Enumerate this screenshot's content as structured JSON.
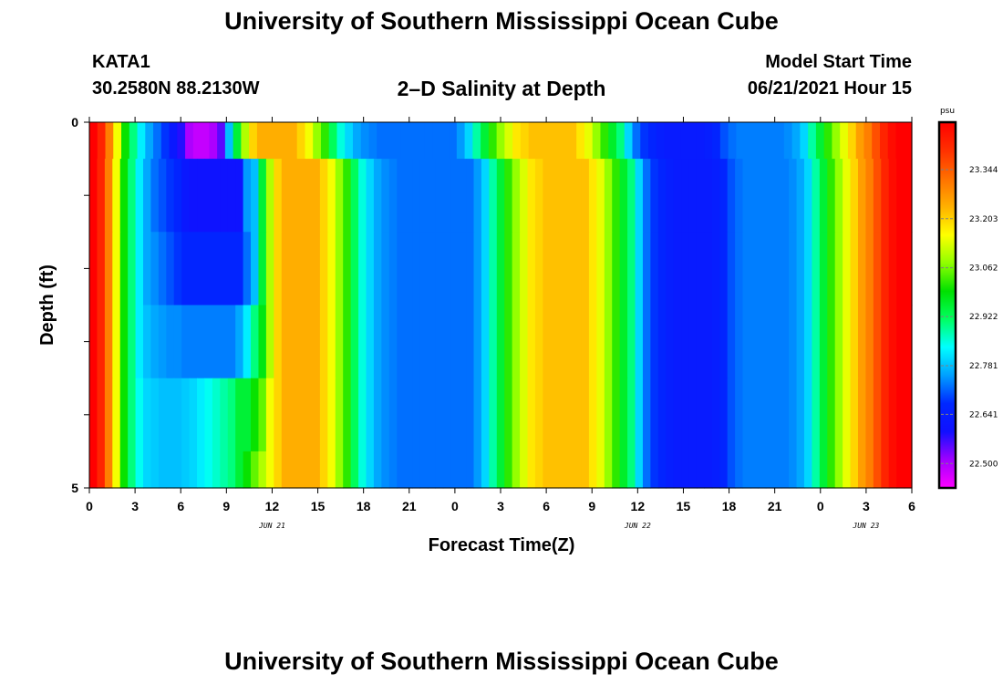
{
  "page": {
    "title_top": "University of Southern Mississippi Ocean Cube",
    "title_bottom": "University of Southern Mississippi Ocean Cube",
    "station": "KATA1",
    "coords": "30.2580N  88.2130W",
    "subtitle": "2–D Salinity at Depth",
    "model_label": "Model Start Time",
    "model_time": "06/21/2021 Hour 15"
  },
  "chart_data": {
    "type": "heatmap",
    "title": "2–D Salinity at Depth",
    "xlabel": "Forecast Time(Z)",
    "ylabel": "Depth (ft)",
    "x_tick_labels": [
      "0",
      "3",
      "6",
      "9",
      "12",
      "15",
      "18",
      "21",
      "0",
      "3",
      "6",
      "9",
      "12",
      "15",
      "18",
      "21",
      "0",
      "3",
      "6"
    ],
    "date_labels": [
      {
        "text": "JUN 21",
        "hour": 12
      },
      {
        "text": "JUN 22",
        "hour": 36
      },
      {
        "text": "JUN 23",
        "hour": 51
      }
    ],
    "y_tick_labels": [
      {
        "depth": 0,
        "text": "0"
      },
      {
        "depth": 5,
        "text": "5"
      }
    ],
    "xlim": [
      0,
      54
    ],
    "ylim": [
      0,
      5
    ],
    "colorbar": {
      "unit": "psu",
      "min": 22.43,
      "max": 23.48,
      "tick_values": [
        23.344,
        23.203,
        23.062,
        22.922,
        22.781,
        22.641,
        22.5
      ],
      "tick_labels": [
        "23.344",
        "23.203",
        "23.062",
        "22.922",
        "22.781",
        "22.641",
        "22.500"
      ],
      "colors": [
        "#ff00ff",
        "#a000ff",
        "#1010ff",
        "#0028ff",
        "#00a0ff",
        "#00ffff",
        "#00ff60",
        "#00e000",
        "#90ff00",
        "#ffff00",
        "#ffb000",
        "#ff7000",
        "#ff3000",
        "#ff0000"
      ]
    },
    "rows": [
      {
        "depth_range": [
          0.0,
          0.5
        ],
        "values": [
          23.48,
          23.42,
          23.3,
          23.15,
          23.0,
          22.9,
          22.82,
          22.76,
          22.72,
          22.68,
          22.62,
          22.58,
          22.5,
          22.48,
          22.48,
          22.5,
          22.55,
          22.78,
          22.95,
          23.1,
          23.2,
          23.24,
          23.24,
          23.24,
          23.24,
          23.24,
          23.2,
          23.15,
          23.08,
          23.02,
          22.92,
          22.85,
          22.8,
          22.76,
          22.74,
          22.73,
          22.72,
          22.72,
          22.72,
          22.72,
          22.72,
          22.72,
          22.72,
          22.72,
          22.72,
          22.72,
          22.75,
          22.8,
          22.88,
          22.95,
          23.02,
          23.08,
          23.13,
          23.18,
          23.2,
          23.22,
          23.22,
          23.22,
          23.22,
          23.22,
          23.22,
          23.18,
          23.14,
          23.08,
          23.02,
          22.96,
          22.9,
          22.8,
          22.72,
          22.68,
          22.66,
          22.64,
          22.63,
          22.63,
          22.63,
          22.63,
          22.63,
          22.64,
          22.66,
          22.7,
          22.72,
          22.73,
          22.73,
          22.73,
          22.73,
          22.73,
          22.73,
          22.74,
          22.76,
          22.8,
          22.88,
          22.95,
          23.02,
          23.08,
          23.14,
          23.2,
          23.26,
          23.3,
          23.36,
          23.42,
          23.46,
          23.48,
          23.48
        ]
      },
      {
        "depth_range": [
          0.5,
          1.5
        ],
        "values": [
          23.48,
          23.42,
          23.3,
          23.15,
          23.0,
          22.9,
          22.82,
          22.76,
          22.72,
          22.7,
          22.68,
          22.66,
          22.62,
          22.6,
          22.6,
          22.6,
          22.6,
          22.6,
          22.6,
          22.6,
          22.75,
          22.78,
          22.95,
          23.1,
          23.2,
          23.24,
          23.24,
          23.24,
          23.24,
          23.24,
          23.2,
          23.15,
          23.08,
          23.02,
          22.92,
          22.85,
          22.8,
          22.76,
          22.74,
          22.73,
          22.72,
          22.72,
          22.72,
          22.72,
          22.72,
          22.72,
          22.72,
          22.72,
          22.72,
          22.72,
          22.75,
          22.8,
          22.88,
          22.95,
          23.02,
          23.08,
          23.13,
          23.18,
          23.2,
          23.22,
          23.22,
          23.22,
          23.22,
          23.22,
          23.22,
          23.18,
          23.14,
          23.08,
          23.02,
          22.96,
          22.9,
          22.8,
          22.72,
          22.68,
          22.66,
          22.64,
          22.63,
          22.63,
          22.63,
          22.63,
          22.63,
          22.64,
          22.66,
          22.7,
          22.72,
          22.73,
          22.73,
          22.73,
          22.73,
          22.73,
          22.73,
          22.74,
          22.76,
          22.8,
          22.88,
          22.95,
          23.02,
          23.08,
          23.14,
          23.2,
          23.26,
          23.3,
          23.36,
          23.42,
          23.46,
          23.48,
          23.48
        ]
      },
      {
        "depth_range": [
          1.5,
          2.5
        ],
        "values": [
          23.48,
          23.42,
          23.3,
          23.15,
          23.0,
          22.9,
          22.82,
          22.76,
          22.74,
          22.72,
          22.7,
          22.68,
          22.66,
          22.66,
          22.66,
          22.66,
          22.66,
          22.66,
          22.66,
          22.66,
          22.72,
          22.78,
          22.95,
          23.1,
          23.2,
          23.24,
          23.24,
          23.24,
          23.24,
          23.24,
          23.2,
          23.15,
          23.08,
          23.02,
          22.92,
          22.85,
          22.8,
          22.76,
          22.74,
          22.73,
          22.72,
          22.72,
          22.72,
          22.72,
          22.72,
          22.72,
          22.72,
          22.72,
          22.72,
          22.72,
          22.75,
          22.8,
          22.88,
          22.95,
          23.02,
          23.08,
          23.13,
          23.18,
          23.2,
          23.22,
          23.22,
          23.22,
          23.22,
          23.22,
          23.22,
          23.18,
          23.14,
          23.08,
          23.02,
          22.96,
          22.9,
          22.8,
          22.72,
          22.68,
          22.66,
          22.64,
          22.63,
          22.63,
          22.63,
          22.63,
          22.63,
          22.64,
          22.66,
          22.7,
          22.72,
          22.73,
          22.73,
          22.73,
          22.73,
          22.73,
          22.73,
          22.74,
          22.76,
          22.8,
          22.88,
          22.95,
          23.02,
          23.08,
          23.14,
          23.2,
          23.26,
          23.3,
          23.36,
          23.42,
          23.46,
          23.48,
          23.48
        ]
      },
      {
        "depth_range": [
          2.5,
          3.5
        ],
        "values": [
          23.48,
          23.42,
          23.3,
          23.15,
          23.0,
          22.9,
          22.82,
          22.78,
          22.76,
          22.75,
          22.74,
          22.74,
          22.73,
          22.73,
          22.73,
          22.73,
          22.73,
          22.73,
          22.73,
          22.76,
          22.82,
          22.9,
          22.98,
          23.1,
          23.2,
          23.24,
          23.24,
          23.24,
          23.24,
          23.24,
          23.2,
          23.15,
          23.08,
          23.02,
          22.92,
          22.85,
          22.8,
          22.76,
          22.74,
          22.73,
          22.72,
          22.72,
          22.72,
          22.72,
          22.72,
          22.72,
          22.72,
          22.72,
          22.72,
          22.72,
          22.75,
          22.8,
          22.88,
          22.95,
          23.02,
          23.08,
          23.13,
          23.18,
          23.2,
          23.22,
          23.22,
          23.22,
          23.22,
          23.22,
          23.22,
          23.18,
          23.14,
          23.08,
          23.02,
          22.96,
          22.9,
          22.8,
          22.72,
          22.68,
          22.66,
          22.64,
          22.63,
          22.63,
          22.63,
          22.63,
          22.63,
          22.64,
          22.66,
          22.7,
          22.72,
          22.73,
          22.73,
          22.73,
          22.73,
          22.73,
          22.73,
          22.74,
          22.76,
          22.8,
          22.88,
          22.95,
          23.02,
          23.08,
          23.14,
          23.2,
          23.26,
          23.3,
          23.36,
          23.42,
          23.46,
          23.48,
          23.48
        ]
      },
      {
        "depth_range": [
          3.5,
          4.5
        ],
        "values": [
          23.48,
          23.42,
          23.3,
          23.15,
          23.0,
          22.9,
          22.84,
          22.8,
          22.79,
          22.78,
          22.78,
          22.78,
          22.79,
          22.8,
          22.82,
          22.84,
          22.86,
          22.88,
          22.9,
          22.95,
          22.95,
          23.0,
          23.05,
          23.15,
          23.2,
          23.24,
          23.24,
          23.24,
          23.24,
          23.24,
          23.2,
          23.15,
          23.08,
          23.02,
          22.92,
          22.85,
          22.8,
          22.76,
          22.74,
          22.73,
          22.72,
          22.72,
          22.72,
          22.72,
          22.72,
          22.72,
          22.72,
          22.72,
          22.72,
          22.72,
          22.75,
          22.8,
          22.88,
          22.95,
          23.02,
          23.08,
          23.13,
          23.18,
          23.2,
          23.22,
          23.22,
          23.22,
          23.22,
          23.22,
          23.22,
          23.18,
          23.14,
          23.08,
          23.02,
          22.96,
          22.9,
          22.8,
          22.72,
          22.68,
          22.66,
          22.64,
          22.63,
          22.63,
          22.63,
          22.63,
          22.63,
          22.64,
          22.66,
          22.7,
          22.72,
          22.73,
          22.73,
          22.73,
          22.73,
          22.73,
          22.73,
          22.74,
          22.76,
          22.8,
          22.88,
          22.95,
          23.02,
          23.08,
          23.14,
          23.2,
          23.26,
          23.3,
          23.36,
          23.42,
          23.46,
          23.48,
          23.48
        ]
      },
      {
        "depth_range": [
          4.5,
          5.0
        ],
        "values": [
          23.48,
          23.42,
          23.3,
          23.15,
          23.0,
          22.9,
          22.84,
          22.8,
          22.79,
          22.78,
          22.78,
          22.78,
          22.79,
          22.8,
          22.82,
          22.84,
          22.86,
          22.88,
          22.9,
          22.95,
          23.0,
          23.05,
          23.1,
          23.15,
          23.2,
          23.24,
          23.24,
          23.24,
          23.24,
          23.24,
          23.2,
          23.15,
          23.08,
          23.02,
          22.92,
          22.85,
          22.8,
          22.76,
          22.74,
          22.73,
          22.72,
          22.72,
          22.72,
          22.72,
          22.72,
          22.72,
          22.72,
          22.72,
          22.72,
          22.72,
          22.75,
          22.8,
          22.88,
          22.95,
          23.02,
          23.08,
          23.13,
          23.18,
          23.2,
          23.22,
          23.22,
          23.22,
          23.22,
          23.22,
          23.22,
          23.18,
          23.14,
          23.08,
          23.02,
          22.96,
          22.9,
          22.8,
          22.72,
          22.68,
          22.66,
          22.64,
          22.63,
          22.63,
          22.63,
          22.63,
          22.63,
          22.64,
          22.66,
          22.7,
          22.72,
          22.73,
          22.73,
          22.73,
          22.73,
          22.73,
          22.73,
          22.74,
          22.76,
          22.8,
          22.88,
          22.95,
          23.02,
          23.08,
          23.14,
          23.2,
          23.26,
          23.3,
          23.36,
          23.42,
          23.46,
          23.48,
          23.48
        ]
      }
    ]
  }
}
